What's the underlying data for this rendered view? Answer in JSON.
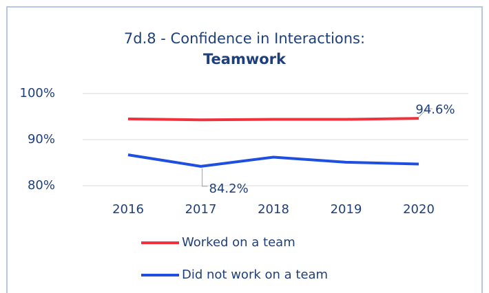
{
  "chart_data": {
    "type": "line",
    "title": "7d.8 - Confidence in Interactions:",
    "subtitle": "Teamwork",
    "categories": [
      "2016",
      "2017",
      "2018",
      "2019",
      "2020"
    ],
    "series": [
      {
        "name": "Worked on a team",
        "color": "#f0323c",
        "values": [
          94.5,
          94.3,
          94.4,
          94.4,
          94.6
        ],
        "value_labels": [
          null,
          null,
          null,
          null,
          "94.6%"
        ]
      },
      {
        "name": "Did not work on a team",
        "color": "#1f4fe0",
        "values": [
          86.7,
          84.2,
          86.2,
          85.1,
          84.7
        ],
        "value_labels": [
          null,
          "84.2%",
          null,
          null,
          null
        ]
      }
    ],
    "ylim": [
      80,
      100
    ],
    "yticks": [
      {
        "value": 80,
        "label": "80%"
      },
      {
        "value": 90,
        "label": "90%"
      },
      {
        "value": 100,
        "label": "100%"
      }
    ],
    "grid": true,
    "legend": "bottom"
  }
}
